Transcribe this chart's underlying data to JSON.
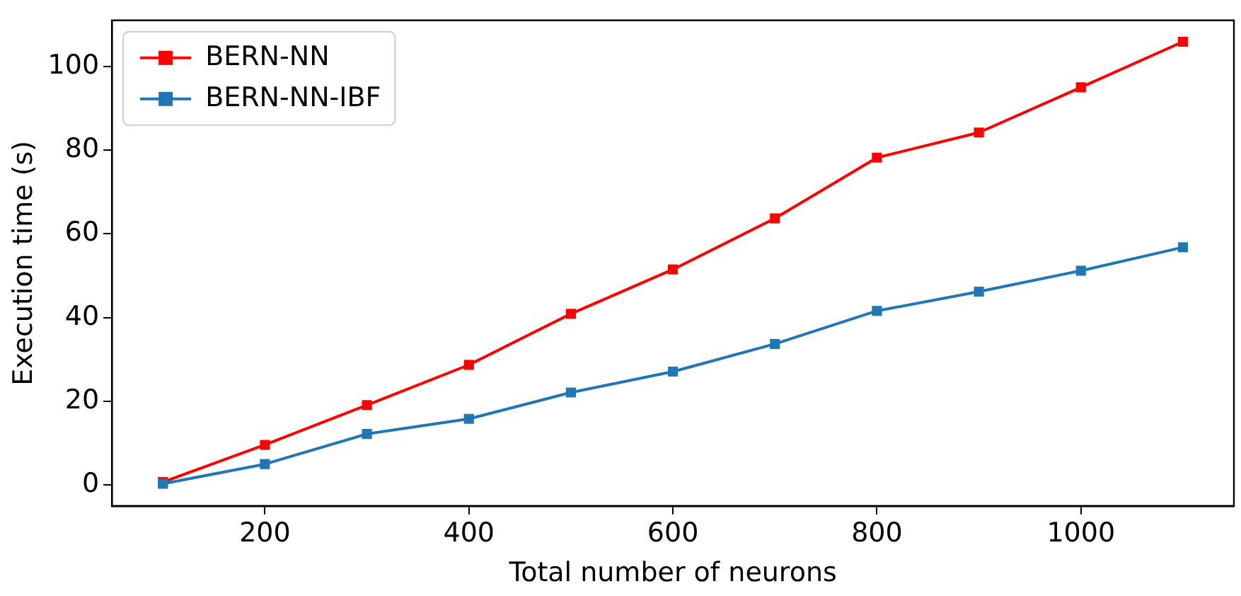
{
  "chart_data": {
    "type": "line",
    "xlabel": "Total number of neurons",
    "ylabel": "Execution time (s)",
    "x": [
      100,
      200,
      300,
      400,
      500,
      600,
      700,
      800,
      900,
      1000,
      1100
    ],
    "series": [
      {
        "name": "BERN-NN",
        "color": "#ff0000",
        "values": [
          0.7,
          9.6,
          19.1,
          28.7,
          40.9,
          51.5,
          63.7,
          78.2,
          84.2,
          95,
          105.9
        ]
      },
      {
        "name": "BERN-NN-IBF",
        "color": "#1f77b4",
        "values": [
          0.3,
          5,
          12.2,
          15.8,
          22.1,
          27.1,
          33.7,
          41.6,
          46.2,
          51.2,
          56.8
        ]
      }
    ],
    "xlim": [
      50,
      1150
    ],
    "xticks": [
      200,
      400,
      600,
      800,
      1000
    ],
    "ylim": [
      -5,
      111
    ],
    "yticks": [
      0,
      20,
      40,
      60,
      80,
      100
    ],
    "grid": false,
    "legend": "top left",
    "marker": "square",
    "line_style": "solid"
  }
}
